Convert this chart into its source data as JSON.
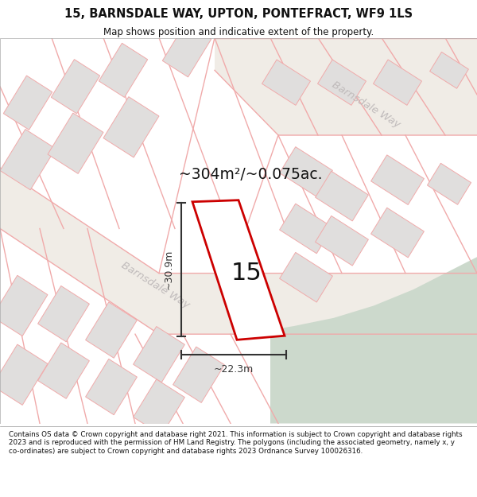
{
  "title_line1": "15, BARNSDALE WAY, UPTON, PONTEFRACT, WF9 1LS",
  "title_line2": "Map shows position and indicative extent of the property.",
  "footer_text": "Contains OS data © Crown copyright and database right 2021. This information is subject to Crown copyright and database rights 2023 and is reproduced with the permission of HM Land Registry. The polygons (including the associated geometry, namely x, y co-ordinates) are subject to Crown copyright and database rights 2023 Ordnance Survey 100026316.",
  "area_label": "~304m²/~0.075ac.",
  "number_label": "15",
  "dim_width": "~22.3m",
  "dim_height": "~30.9m",
  "road_label_lower": "Barnsdale Way",
  "road_label_upper": "Barnsdale Way",
  "map_bg": "#f5f2ee",
  "road_bg": "#f0ece6",
  "green_color": "#ccd9cc",
  "building_fill": "#e0dedd",
  "building_edge": "#f0aaaa",
  "plot_outline_color": "#cc0000",
  "road_line_color": "#f0aaaa",
  "dim_line_color": "#333333",
  "road_text_color": "#c0bbbb",
  "title_color": "#111111",
  "footer_color": "#111111",
  "area_label_color": "#111111"
}
